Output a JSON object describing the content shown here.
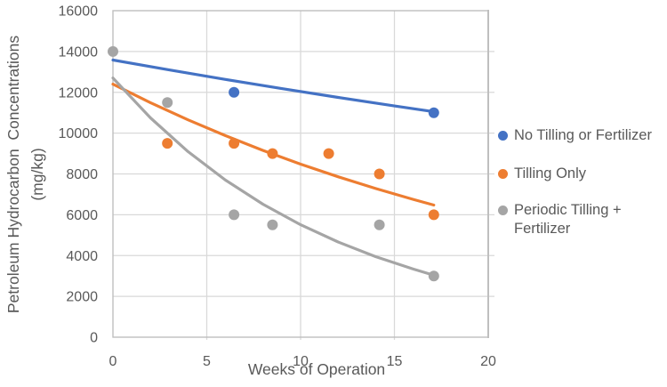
{
  "figure": {
    "background": "#ffffff",
    "text_color": "#595959",
    "gridline_color": "#D9D9D9",
    "border_color": "#BFBFBF"
  },
  "chart_data": {
    "type": "scatter",
    "title": "",
    "xlabel": "Weeks of Operation",
    "ylabel_line1": "Petroleum Hydrocarbon  Concentrations",
    "ylabel_line2": "(mg/kg)",
    "xlim": [
      0,
      20
    ],
    "ylim": [
      0,
      16000
    ],
    "x_ticks": [
      0,
      5,
      10,
      15,
      20
    ],
    "y_ticks": [
      0,
      2000,
      4000,
      6000,
      8000,
      10000,
      12000,
      14000,
      16000
    ],
    "grid": true,
    "legend_position": "right",
    "series": [
      {
        "name": "No Tilling or Fertilizer",
        "color": "#4472C4",
        "marker": "circle",
        "points": [
          [
            6.45,
            12000
          ],
          [
            17.1,
            11000
          ]
        ],
        "trendline": [
          [
            0,
            13580
          ],
          [
            3,
            13097
          ],
          [
            6,
            12631
          ],
          [
            9,
            12182
          ],
          [
            12,
            11749
          ],
          [
            15,
            11331
          ],
          [
            17.1,
            11047
          ]
        ]
      },
      {
        "name": "Tilling Only",
        "color": "#ED7D31",
        "marker": "circle",
        "points": [
          [
            2.9,
            9500
          ],
          [
            6.45,
            9500
          ],
          [
            8.5,
            9000
          ],
          [
            11.5,
            9000
          ],
          [
            14.2,
            8000
          ],
          [
            17.1,
            6000
          ]
        ],
        "trendline": [
          [
            0,
            12400
          ],
          [
            2,
            11493
          ],
          [
            4,
            10652
          ],
          [
            6,
            9873
          ],
          [
            8,
            9151
          ],
          [
            10,
            8481
          ],
          [
            12,
            7861
          ],
          [
            14,
            7286
          ],
          [
            16,
            6753
          ],
          [
            17.1,
            6474
          ]
        ]
      },
      {
        "name": "Periodic Tilling + Fertilizer",
        "color": "#A5A5A5",
        "marker": "circle",
        "points": [
          [
            0,
            14000
          ],
          [
            2.9,
            11500
          ],
          [
            6.45,
            6000
          ],
          [
            8.5,
            5500
          ],
          [
            14.2,
            5500
          ],
          [
            17.1,
            3000
          ]
        ],
        "trendline": [
          [
            0,
            12700
          ],
          [
            2,
            10747
          ],
          [
            4,
            9094
          ],
          [
            6,
            7696
          ],
          [
            8,
            6512
          ],
          [
            10,
            5511
          ],
          [
            12,
            4663
          ],
          [
            14,
            3946
          ],
          [
            16,
            3339
          ],
          [
            17.1,
            3036
          ]
        ]
      }
    ],
    "legend_items": [
      {
        "label_lines": [
          "No Tilling or Fertilizer"
        ]
      },
      {
        "label_lines": [
          "Tilling Only"
        ]
      },
      {
        "label_lines": [
          "Periodic Tilling +",
          "Fertilizer"
        ]
      }
    ]
  }
}
